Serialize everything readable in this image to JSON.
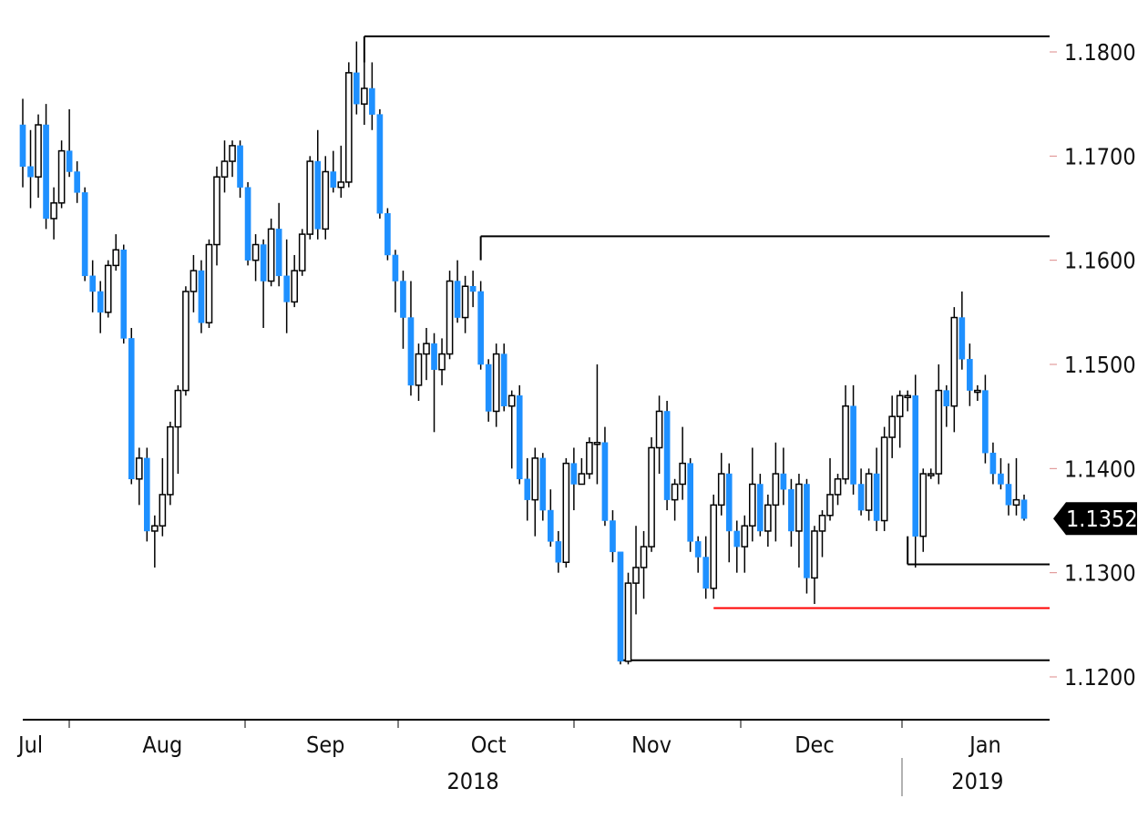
{
  "chart_data": {
    "type": "candlestick",
    "title": "",
    "colors": {
      "up": "#ffffff",
      "down": "#1e90ff",
      "outline": "#000000",
      "support": "#ff0000"
    },
    "ylim": [
      1.1155,
      1.1835
    ],
    "y_ticks": [
      "1.1800",
      "1.1700",
      "1.1600",
      "1.1500",
      "1.1400",
      "1.1300",
      "1.1200"
    ],
    "x_ticks": [
      {
        "label": "Jul",
        "index": 1
      },
      {
        "label": "Aug",
        "index": 18
      },
      {
        "label": "Sep",
        "index": 39
      },
      {
        "label": "Oct",
        "index": 60
      },
      {
        "label": "Nov",
        "index": 81
      },
      {
        "label": "Dec",
        "index": 102
      },
      {
        "label": "Jan",
        "index": 124
      }
    ],
    "x_year_labels": [
      {
        "label": "2018",
        "index": 58
      },
      {
        "label": "2019",
        "index": 123
      }
    ],
    "last_price": "1.1352",
    "level_lines": [
      {
        "value": 1.1815,
        "start_index": 44,
        "color": "#000000"
      },
      {
        "value": 1.1623,
        "start_index": 59,
        "color": "#000000"
      },
      {
        "value": 1.1308,
        "start_index": 114,
        "color": "#000000"
      },
      {
        "value": 1.1266,
        "start_index": 89,
        "color": "#ff0000"
      },
      {
        "value": 1.1216,
        "start_index": 77,
        "color": "#000000"
      }
    ],
    "candles": [
      [
        1.173,
        1.1755,
        1.167,
        1.169
      ],
      [
        1.169,
        1.1725,
        1.165,
        1.168
      ],
      [
        1.168,
        1.174,
        1.166,
        1.173
      ],
      [
        1.173,
        1.175,
        1.163,
        1.164
      ],
      [
        1.164,
        1.167,
        1.162,
        1.1655
      ],
      [
        1.1655,
        1.1715,
        1.165,
        1.1705
      ],
      [
        1.1705,
        1.1745,
        1.168,
        1.1685
      ],
      [
        1.1685,
        1.1695,
        1.1655,
        1.1665
      ],
      [
        1.1665,
        1.167,
        1.158,
        1.1585
      ],
      [
        1.1585,
        1.16,
        1.155,
        1.157
      ],
      [
        1.157,
        1.158,
        1.153,
        1.155
      ],
      [
        1.155,
        1.16,
        1.1545,
        1.1595
      ],
      [
        1.1595,
        1.1625,
        1.159,
        1.161
      ],
      [
        1.161,
        1.1615,
        1.152,
        1.1525
      ],
      [
        1.1525,
        1.1535,
        1.1385,
        1.139
      ],
      [
        1.139,
        1.142,
        1.1365,
        1.141
      ],
      [
        1.141,
        1.142,
        1.133,
        1.134
      ],
      [
        1.134,
        1.1355,
        1.1305,
        1.1345
      ],
      [
        1.1345,
        1.141,
        1.1335,
        1.1375
      ],
      [
        1.1375,
        1.1445,
        1.1365,
        1.144
      ],
      [
        1.144,
        1.148,
        1.1395,
        1.1475
      ],
      [
        1.1475,
        1.1575,
        1.147,
        1.157
      ],
      [
        1.157,
        1.1605,
        1.155,
        1.159
      ],
      [
        1.159,
        1.16,
        1.153,
        1.154
      ],
      [
        1.154,
        1.162,
        1.1535,
        1.1615
      ],
      [
        1.1615,
        1.169,
        1.1595,
        1.168
      ],
      [
        1.168,
        1.1715,
        1.1665,
        1.1695
      ],
      [
        1.1695,
        1.1715,
        1.168,
        1.171
      ],
      [
        1.171,
        1.1715,
        1.166,
        1.167
      ],
      [
        1.167,
        1.1675,
        1.1595,
        1.16
      ],
      [
        1.16,
        1.1625,
        1.158,
        1.1615
      ],
      [
        1.1615,
        1.162,
        1.1535,
        1.158
      ],
      [
        1.158,
        1.164,
        1.1575,
        1.163
      ],
      [
        1.163,
        1.1655,
        1.1575,
        1.1585
      ],
      [
        1.1585,
        1.162,
        1.153,
        1.156
      ],
      [
        1.156,
        1.1605,
        1.1555,
        1.159
      ],
      [
        1.159,
        1.163,
        1.1585,
        1.1625
      ],
      [
        1.1625,
        1.17,
        1.162,
        1.1695
      ],
      [
        1.1695,
        1.1725,
        1.162,
        1.163
      ],
      [
        1.163,
        1.17,
        1.162,
        1.1685
      ],
      [
        1.1685,
        1.1705,
        1.1665,
        1.167
      ],
      [
        1.167,
        1.171,
        1.166,
        1.1675
      ],
      [
        1.1675,
        1.179,
        1.167,
        1.178
      ],
      [
        1.178,
        1.181,
        1.174,
        1.175
      ],
      [
        1.175,
        1.18,
        1.173,
        1.1765
      ],
      [
        1.1765,
        1.179,
        1.1725,
        1.174
      ],
      [
        1.174,
        1.1745,
        1.164,
        1.1645
      ],
      [
        1.1645,
        1.165,
        1.16,
        1.1605
      ],
      [
        1.1605,
        1.161,
        1.155,
        1.158
      ],
      [
        1.158,
        1.159,
        1.1515,
        1.1545
      ],
      [
        1.1545,
        1.158,
        1.147,
        1.148
      ],
      [
        1.148,
        1.152,
        1.1465,
        1.151
      ],
      [
        1.151,
        1.1535,
        1.1485,
        1.152
      ],
      [
        1.152,
        1.153,
        1.1435,
        1.1495
      ],
      [
        1.1495,
        1.1525,
        1.148,
        1.151
      ],
      [
        1.151,
        1.159,
        1.1505,
        1.158
      ],
      [
        1.158,
        1.16,
        1.154,
        1.1545
      ],
      [
        1.1545,
        1.1585,
        1.153,
        1.1575
      ],
      [
        1.1575,
        1.159,
        1.1555,
        1.157
      ],
      [
        1.157,
        1.158,
        1.1495,
        1.15
      ],
      [
        1.15,
        1.1505,
        1.1445,
        1.1455
      ],
      [
        1.1455,
        1.152,
        1.144,
        1.151
      ],
      [
        1.151,
        1.152,
        1.1455,
        1.146
      ],
      [
        1.146,
        1.1475,
        1.14,
        1.147
      ],
      [
        1.147,
        1.148,
        1.1385,
        1.139
      ],
      [
        1.139,
        1.141,
        1.135,
        1.137
      ],
      [
        1.137,
        1.142,
        1.1335,
        1.141
      ],
      [
        1.141,
        1.1415,
        1.135,
        1.136
      ],
      [
        1.136,
        1.138,
        1.1325,
        1.133
      ],
      [
        1.133,
        1.134,
        1.13,
        1.131
      ],
      [
        1.131,
        1.141,
        1.1305,
        1.1405
      ],
      [
        1.1405,
        1.142,
        1.136,
        1.1385
      ],
      [
        1.1385,
        1.141,
        1.1385,
        1.1395
      ],
      [
        1.1395,
        1.143,
        1.139,
        1.1425
      ],
      [
        1.1425,
        1.15,
        1.1385,
        1.1425
      ],
      [
        1.1425,
        1.144,
        1.1345,
        1.135
      ],
      [
        1.135,
        1.136,
        1.131,
        1.132
      ],
      [
        1.132,
        1.132,
        1.1212,
        1.1215
      ],
      [
        1.1215,
        1.13,
        1.1212,
        1.129
      ],
      [
        1.129,
        1.1345,
        1.126,
        1.1305
      ],
      [
        1.1305,
        1.134,
        1.1275,
        1.1325
      ],
      [
        1.1325,
        1.143,
        1.132,
        1.142
      ],
      [
        1.142,
        1.147,
        1.1395,
        1.1455
      ],
      [
        1.1455,
        1.1465,
        1.136,
        1.137
      ],
      [
        1.137,
        1.139,
        1.135,
        1.1385
      ],
      [
        1.1385,
        1.144,
        1.137,
        1.1405
      ],
      [
        1.1405,
        1.141,
        1.132,
        1.133
      ],
      [
        1.133,
        1.1335,
        1.13,
        1.1315
      ],
      [
        1.1315,
        1.1335,
        1.1275,
        1.1285
      ],
      [
        1.1285,
        1.1375,
        1.1275,
        1.1365
      ],
      [
        1.1365,
        1.1415,
        1.1355,
        1.1395
      ],
      [
        1.1395,
        1.1405,
        1.131,
        1.134
      ],
      [
        1.134,
        1.135,
        1.13,
        1.1325
      ],
      [
        1.1325,
        1.1355,
        1.13,
        1.1345
      ],
      [
        1.1345,
        1.142,
        1.133,
        1.1385
      ],
      [
        1.1385,
        1.1395,
        1.1335,
        1.134
      ],
      [
        1.134,
        1.1375,
        1.1325,
        1.1365
      ],
      [
        1.1365,
        1.1425,
        1.133,
        1.1395
      ],
      [
        1.1395,
        1.142,
        1.1365,
        1.138
      ],
      [
        1.138,
        1.139,
        1.1325,
        1.134
      ],
      [
        1.134,
        1.1395,
        1.1305,
        1.1385
      ],
      [
        1.1385,
        1.139,
        1.128,
        1.1295
      ],
      [
        1.1295,
        1.1345,
        1.127,
        1.134
      ],
      [
        1.134,
        1.136,
        1.1315,
        1.1355
      ],
      [
        1.1355,
        1.141,
        1.135,
        1.1375
      ],
      [
        1.1375,
        1.1395,
        1.1365,
        1.139
      ],
      [
        1.139,
        1.148,
        1.1385,
        1.146
      ],
      [
        1.146,
        1.148,
        1.1375,
        1.1385
      ],
      [
        1.1385,
        1.14,
        1.1355,
        1.136
      ],
      [
        1.136,
        1.14,
        1.135,
        1.1395
      ],
      [
        1.1395,
        1.142,
        1.134,
        1.135
      ],
      [
        1.135,
        1.144,
        1.134,
        1.143
      ],
      [
        1.143,
        1.147,
        1.141,
        1.145
      ],
      [
        1.145,
        1.1475,
        1.142,
        1.147
      ],
      [
        1.147,
        1.1475,
        1.1455,
        1.147
      ],
      [
        1.147,
        1.149,
        1.1305,
        1.1335
      ],
      [
        1.1335,
        1.14,
        1.132,
        1.1395
      ],
      [
        1.1395,
        1.14,
        1.139,
        1.1395
      ],
      [
        1.1395,
        1.15,
        1.1385,
        1.1475
      ],
      [
        1.1475,
        1.148,
        1.144,
        1.146
      ],
      [
        1.146,
        1.1555,
        1.1435,
        1.1545
      ],
      [
        1.1545,
        1.157,
        1.1495,
        1.1505
      ],
      [
        1.1505,
        1.152,
        1.146,
        1.1475
      ],
      [
        1.1475,
        1.148,
        1.1465,
        1.1475
      ],
      [
        1.1475,
        1.149,
        1.1405,
        1.1415
      ],
      [
        1.1415,
        1.1425,
        1.1385,
        1.1395
      ],
      [
        1.1395,
        1.141,
        1.138,
        1.1385
      ],
      [
        1.1385,
        1.1405,
        1.1355,
        1.1365
      ],
      [
        1.1365,
        1.141,
        1.1355,
        1.137
      ],
      [
        1.137,
        1.1375,
        1.135,
        1.1352
      ]
    ]
  }
}
